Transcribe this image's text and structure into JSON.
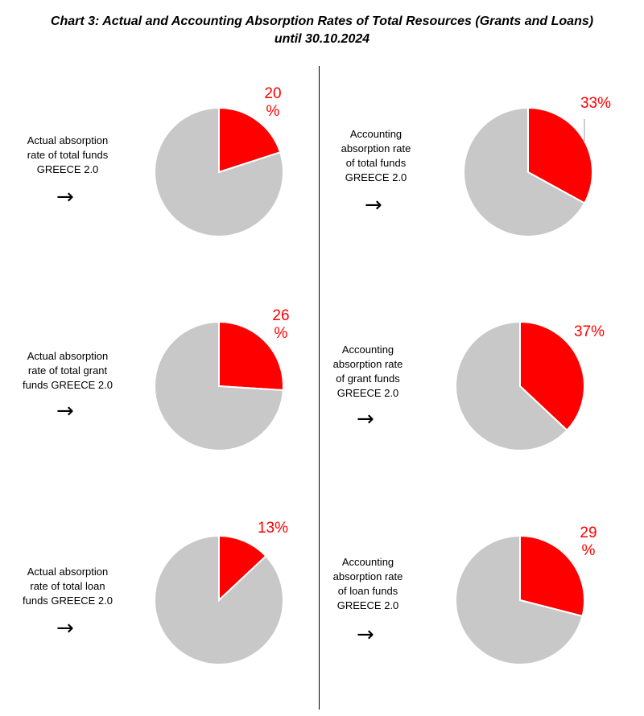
{
  "title": "Chart 3: Actual and Accounting Absorption Rates of Total Resources (Grants and Loans)\nuntil 30.10.2024",
  "colors": {
    "absorbed": "#ff0000",
    "remaining": "#c8c8c8",
    "edge": "#ffffff"
  },
  "arrow_icon": "right-arrow-icon",
  "chart_data": [
    {
      "type": "pie",
      "label": "Actual absorption\nrate of total funds\nGREECE 2.0",
      "value_label": "20\n%",
      "values": [
        20,
        80
      ]
    },
    {
      "type": "pie",
      "label": "Accounting\nabsorption rate\nof total funds\nGREECE 2.0",
      "value_label": "33%",
      "values": [
        33,
        67
      ]
    },
    {
      "type": "pie",
      "label": "Actual absorption\nrate of total grant\nfunds GREECE 2.0",
      "value_label": "26\n%",
      "values": [
        26,
        74
      ]
    },
    {
      "type": "pie",
      "label": "Accounting\nabsorption rate\nof grant funds\nGREECE 2.0",
      "value_label": "37%",
      "values": [
        37,
        63
      ]
    },
    {
      "type": "pie",
      "label": "Actual absorption\nrate of total loan\nfunds GREECE 2.0",
      "value_label": "13%",
      "values": [
        13,
        87
      ]
    },
    {
      "type": "pie",
      "label": "Accounting\nabsorption rate\nof loan funds\nGREECE 2.0",
      "value_label": "29\n%",
      "values": [
        29,
        71
      ]
    }
  ]
}
